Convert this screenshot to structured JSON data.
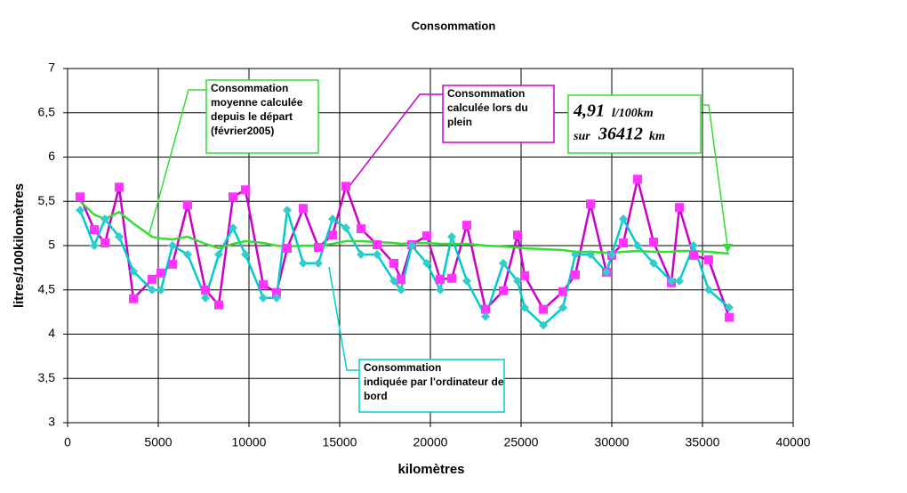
{
  "chart_data": {
    "type": "line",
    "title": "Consommation",
    "x_label": "kilomètres",
    "y_label": "litres/100kilomètres",
    "xlim": [
      0,
      40000
    ],
    "xticks": [
      0,
      5000,
      10000,
      15000,
      20000,
      25000,
      30000,
      35000,
      40000
    ],
    "ylim": [
      3,
      7
    ],
    "yticks": [
      3,
      {
        "value": 3.5,
        "label": "3,5"
      },
      4,
      {
        "value": 4.5,
        "label": "4,5"
      },
      5,
      {
        "value": 5.5,
        "label": "5,5"
      },
      6,
      {
        "value": 6.5,
        "label": "6,5"
      },
      7
    ],
    "grid": true,
    "x": [
      686,
      1470,
      2059,
      2843,
      3627,
      4657,
      5147,
      5784,
      6618,
      7598,
      8333,
      9118,
      9804,
      10784,
      11520,
      12108,
      12990,
      13824,
      14608,
      15343,
      16176,
      17059,
      17990,
      18382,
      18971,
      19804,
      20539,
      21176,
      22010,
      23039,
      24020,
      24804,
      25196,
      26225,
      27304,
      27990,
      28824,
      29706,
      30000,
      30637,
      31422,
      32304,
      33284,
      33725,
      34510,
      35343,
      36471
    ],
    "series": [
      {
        "color": "#ff33ff",
        "line_color": "#cc00cc",
        "marker": "square",
        "values": [
          5.55,
          5.18,
          5.03,
          5.66,
          4.4,
          4.62,
          4.69,
          4.79,
          5.46,
          4.5,
          4.33,
          5.55,
          5.63,
          4.56,
          4.47,
          4.97,
          5.42,
          4.98,
          5.12,
          5.67,
          5.19,
          5.01,
          4.8,
          4.62,
          5.01,
          5.11,
          4.62,
          4.63,
          5.23,
          4.28,
          4.49,
          5.12,
          4.66,
          4.28,
          4.48,
          4.67,
          5.47,
          4.7,
          4.89,
          5.03,
          5.75,
          5.04,
          4.58,
          5.43,
          4.89,
          4.84,
          4.19
        ]
      },
      {
        "color": "#33cccc",
        "line_color": "#00cccc",
        "marker": "diamond",
        "values": [
          5.4,
          5.0,
          5.3,
          5.1,
          4.71,
          4.5,
          4.5,
          5.0,
          4.9,
          4.41,
          4.9,
          5.2,
          4.9,
          4.41,
          4.41,
          5.4,
          4.8,
          4.8,
          5.3,
          5.2,
          4.9,
          4.9,
          4.6,
          4.5,
          5.0,
          4.8,
          4.5,
          5.1,
          4.6,
          4.2,
          4.8,
          4.6,
          4.3,
          4.1,
          4.3,
          4.9,
          4.9,
          4.7,
          4.9,
          5.3,
          5.0,
          4.8,
          4.6,
          4.6,
          5.0,
          4.5,
          4.3
        ]
      },
      {
        "color": "#33dd33",
        "line_color": "#33dd33",
        "marker": "none",
        "values": [
          5.5,
          5.35,
          5.3,
          5.38,
          5.25,
          5.1,
          5.08,
          5.07,
          5.1,
          5.02,
          4.97,
          5.02,
          5.05,
          5.03,
          5.0,
          4.99,
          5.0,
          5.0,
          5.02,
          5.05,
          5.05,
          5.04,
          5.03,
          5.02,
          5.03,
          5.03,
          5.02,
          5.02,
          5.02,
          5.0,
          4.99,
          4.98,
          4.97,
          4.96,
          4.95,
          4.93,
          4.93,
          4.92,
          4.92,
          4.93,
          4.94,
          4.93,
          4.93,
          4.94,
          4.94,
          4.93,
          4.91
        ]
      }
    ],
    "annotations": {
      "average": [
        "Consommation",
        "moyenne calculée",
        "depuis le départ",
        "(février2005)"
      ],
      "fill": [
        "Consommation",
        "calculée lors du",
        "plein"
      ],
      "computer": [
        "Consommation",
        "indiquée par l'ordinateur de",
        "bord"
      ],
      "summary": {
        "value": "4,91",
        "unit": "l/100km",
        "prefix": "sur",
        "distance": "36412",
        "distance_unit": "km"
      }
    }
  }
}
